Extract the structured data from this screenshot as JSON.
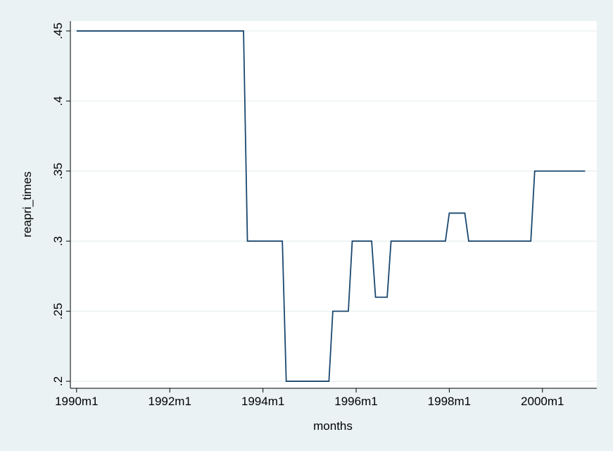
{
  "chart_data": {
    "type": "line",
    "x_label": "months",
    "y_label": "reapri_times",
    "x": [
      360,
      403,
      404,
      413,
      414,
      425,
      426,
      430,
      431,
      436,
      437,
      440,
      441,
      455,
      456,
      460,
      461,
      477,
      478,
      491
    ],
    "series": [
      {
        "name": "reapri_times",
        "color": "#1a476f",
        "values": [
          0.45,
          0.45,
          0.3,
          0.3,
          0.2,
          0.2,
          0.25,
          0.25,
          0.3,
          0.3,
          0.26,
          0.26,
          0.3,
          0.3,
          0.32,
          0.32,
          0.3,
          0.3,
          0.35,
          0.35
        ]
      }
    ],
    "xlim": [
      358.4,
      494
    ],
    "xticks": [
      {
        "value": 360,
        "label": "1990m1"
      },
      {
        "value": 384,
        "label": "1992m1"
      },
      {
        "value": 408,
        "label": "1994m1"
      },
      {
        "value": 432,
        "label": "1996m1"
      },
      {
        "value": 456,
        "label": "1998m1"
      },
      {
        "value": 480,
        "label": "2000m1"
      }
    ],
    "ylim": [
      0.195,
      0.457
    ],
    "yticks": [
      {
        "value": 0.2,
        "label": ".2"
      },
      {
        "value": 0.25,
        "label": ".25"
      },
      {
        "value": 0.3,
        "label": ".3"
      },
      {
        "value": 0.35,
        "label": ".35"
      },
      {
        "value": 0.4,
        "label": ".4"
      },
      {
        "value": 0.45,
        "label": ".45"
      }
    ],
    "grid": true
  }
}
